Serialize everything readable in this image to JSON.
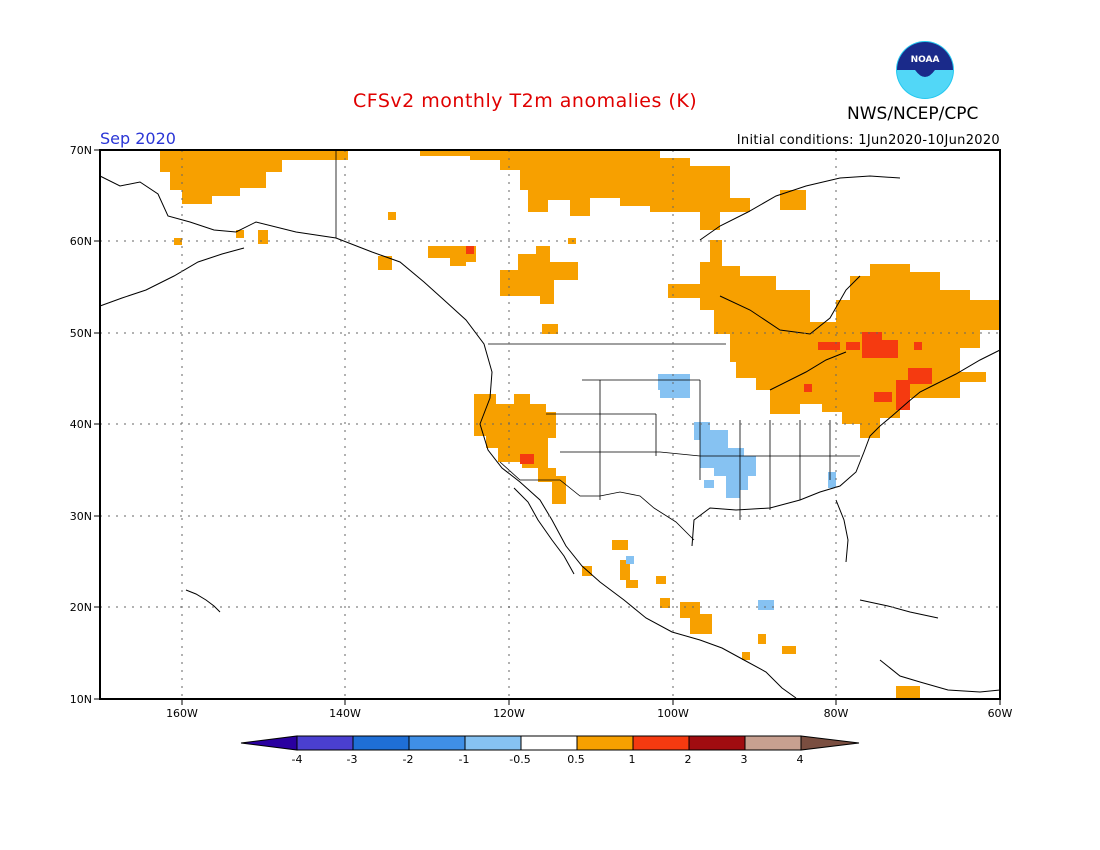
{
  "title": "CFSv2 monthly T2m anomalies (K)",
  "agency": "NWS/NCEP/CPC",
  "logo_text": "NOAA",
  "valid_month": "Sep 2020",
  "initial_conditions": "Initial conditions: 1Jun2020-10Jun2020",
  "lon_ticks": [
    "160W",
    "140W",
    "120W",
    "100W",
    "80W",
    "60W"
  ],
  "lat_ticks": [
    "70N",
    "60N",
    "50N",
    "40N",
    "30N",
    "20N",
    "10N"
  ],
  "colorbar": {
    "labels": [
      "-4",
      "-3",
      "-2",
      "-1",
      "-0.5",
      "0.5",
      "1",
      "2",
      "3",
      "4"
    ],
    "colors": [
      "#2a00a0",
      "#4a3fd0",
      "#1f6fd6",
      "#3f8fe6",
      "#86c2f2",
      "#ffffff",
      "#f7a000",
      "#f53a10",
      "#a00c10",
      "#c8a090",
      "#7a4e40"
    ]
  },
  "anomaly_colors": {
    "warm": "#f7a000",
    "hot": "#f53a10",
    "cool": "#86c2f2"
  }
}
